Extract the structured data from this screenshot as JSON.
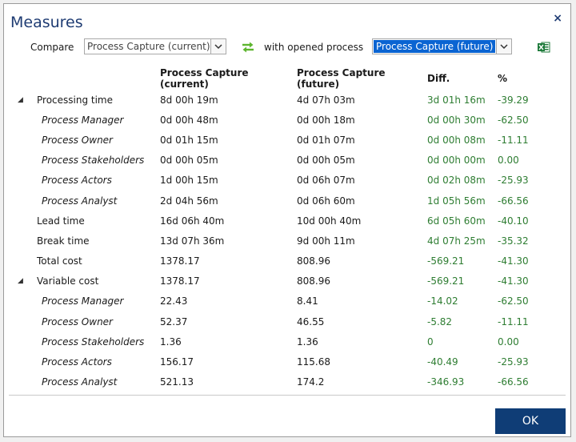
{
  "window": {
    "title": "Measures",
    "close_icon": "×"
  },
  "toolbar": {
    "compare_label": "Compare",
    "left_process": "Process Capture (current)",
    "with_label": "with opened process",
    "right_process": "Process Capture (future)"
  },
  "table": {
    "headers": {
      "current": "Process Capture (current)",
      "future": "Process Capture (future)",
      "diff": "Diff.",
      "pct": "%"
    },
    "rows": [
      {
        "name": "Processing time",
        "current": "8d 00h 19m",
        "future": "4d 07h 03m",
        "diff": "3d 01h 16m",
        "pct": "-39.29",
        "sub": false,
        "toggle": "◢"
      },
      {
        "name": "Process Manager",
        "current": "0d 00h 48m",
        "future": "0d 00h 18m",
        "diff": "0d 00h 30m",
        "pct": "-62.50",
        "sub": true,
        "toggle": ""
      },
      {
        "name": "Process Owner",
        "current": "0d 01h 15m",
        "future": "0d 01h 07m",
        "diff": "0d 00h 08m",
        "pct": "-11.11",
        "sub": true,
        "toggle": ""
      },
      {
        "name": "Process Stakeholders",
        "current": "0d 00h 05m",
        "future": "0d 00h 05m",
        "diff": "0d 00h 00m",
        "pct": "0.00",
        "sub": true,
        "toggle": ""
      },
      {
        "name": "Process Actors",
        "current": "1d 00h 15m",
        "future": "0d 06h 07m",
        "diff": "0d 02h 08m",
        "pct": "-25.93",
        "sub": true,
        "toggle": ""
      },
      {
        "name": "Process Analyst",
        "current": "2d 04h 56m",
        "future": "0d 06h 60m",
        "diff": "1d 05h 56m",
        "pct": "-66.56",
        "sub": true,
        "toggle": ""
      },
      {
        "name": "Lead time",
        "current": "16d 06h 40m",
        "future": "10d 00h 40m",
        "diff": "6d 05h 60m",
        "pct": "-40.10",
        "sub": false,
        "toggle": ""
      },
      {
        "name": "Break time",
        "current": "13d 07h 36m",
        "future": "9d 00h 11m",
        "diff": "4d 07h 25m",
        "pct": "-35.32",
        "sub": false,
        "toggle": ""
      },
      {
        "name": "Total cost",
        "current": "1378.17",
        "future": "808.96",
        "diff": "-569.21",
        "pct": "-41.30",
        "sub": false,
        "toggle": ""
      },
      {
        "name": "Variable cost",
        "current": "1378.17",
        "future": "808.96",
        "diff": "-569.21",
        "pct": "-41.30",
        "sub": false,
        "toggle": "◢"
      },
      {
        "name": "Process Manager",
        "current": "22.43",
        "future": "8.41",
        "diff": "-14.02",
        "pct": "-62.50",
        "sub": true,
        "toggle": ""
      },
      {
        "name": "Process Owner",
        "current": "52.37",
        "future": "46.55",
        "diff": "-5.82",
        "pct": "-11.11",
        "sub": true,
        "toggle": ""
      },
      {
        "name": "Process Stakeholders",
        "current": "1.36",
        "future": "1.36",
        "diff": "0",
        "pct": "0.00",
        "sub": true,
        "toggle": ""
      },
      {
        "name": "Process Actors",
        "current": "156.17",
        "future": "115.68",
        "diff": "-40.49",
        "pct": "-25.93",
        "sub": true,
        "toggle": ""
      },
      {
        "name": "Process Analyst",
        "current": "521.13",
        "future": "174.2",
        "diff": "-346.93",
        "pct": "-66.56",
        "sub": true,
        "toggle": ""
      }
    ]
  },
  "footer": {
    "ok_label": "OK"
  },
  "colors": {
    "accent": "#0f3d76",
    "positive": "#2e7d32",
    "title": "#1f3c73"
  }
}
